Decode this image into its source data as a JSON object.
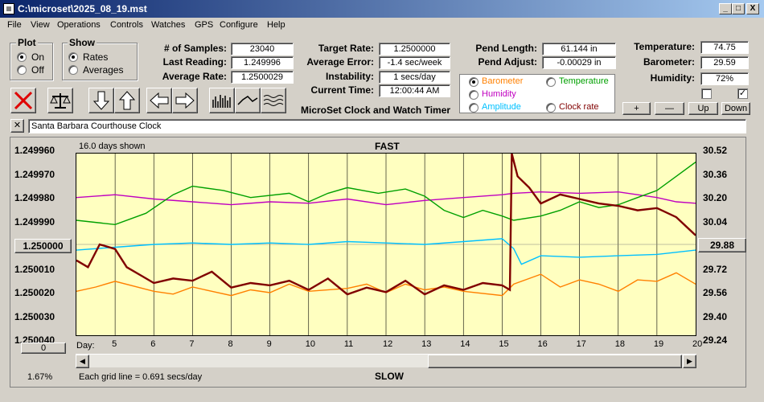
{
  "window": {
    "title": "C:\\microset\\2025_08_19.mst",
    "min": "_",
    "max": "□",
    "close": "X"
  },
  "menu": [
    "File",
    "View",
    "Operations",
    "Controls",
    "Watches",
    "GPS",
    "Configure",
    "Help"
  ],
  "plot_group": {
    "label": "Plot",
    "options": [
      "On",
      "Off"
    ],
    "selected": "On"
  },
  "show_group": {
    "label": "Show",
    "options": [
      "Rates",
      "Averages"
    ],
    "selected": "Rates"
  },
  "stats": {
    "samples_label": "# of Samples:",
    "samples": "23040",
    "last_label": "Last Reading:",
    "last": "1.249996",
    "avg_label": "Average Rate:",
    "avg": "1.2500029",
    "target_label": "Target Rate:",
    "target": "1.2500000",
    "err_label": "Average Error:",
    "err": "-1.4 sec/week",
    "instab_label": "Instability:",
    "instab": "1 secs/day",
    "time_label": "Current Time:",
    "time": "12:00:44 AM",
    "pendlen_label": "Pend Length:",
    "pendlen": "61.144 in",
    "pendadj_label": "Pend Adjust:",
    "pendadj": "-0.00029 in",
    "temp_label": "Temperature:",
    "temp": "74.75",
    "baro_label": "Barometer:",
    "baro": "29.59",
    "hum_label": "Humidity:",
    "hum": "72%"
  },
  "app_caption": "MicroSet Clock and Watch Timer",
  "sensor_options": [
    {
      "label": "Barometer",
      "color": "#ff8000",
      "selected": true
    },
    {
      "label": "Temperature",
      "color": "#00a000",
      "selected": false
    },
    {
      "label": "Humidity",
      "color": "#c000c0",
      "selected": false
    },
    {
      "label": "Amplitude",
      "color": "#00c0ff",
      "selected": false
    },
    {
      "label": "Clock rate",
      "color": "#800000",
      "selected": false
    }
  ],
  "small_buttons": {
    "plus": "+",
    "minus": "—",
    "up": "Up",
    "down": "Down"
  },
  "clock_name": "Santa Barbara Courthouse Clock",
  "chart_data": {
    "type": "line",
    "top_label": "FAST",
    "bottom_label": "SLOW",
    "days_shown": "16.0 days shown",
    "grid_note": "Each grid line = 0.691 secs/day",
    "zoom": "1.67%",
    "x_prefix": "Day:",
    "x_ticks": [
      "5",
      "6",
      "7",
      "8",
      "9",
      "10",
      "11",
      "12",
      "13",
      "14",
      "15",
      "16",
      "17",
      "18",
      "19",
      "20"
    ],
    "y_left_ticks": [
      "1.249960",
      "1.249970",
      "1.249980",
      "1.249990",
      "1.250000",
      "1.250010",
      "1.250020",
      "1.250030",
      "1.250040"
    ],
    "y_right_ticks": [
      "30.52",
      "30.36",
      "30.20",
      "30.04",
      "29.88",
      "29.72",
      "29.56",
      "29.40",
      "29.24"
    ],
    "left_button": "1.250000",
    "right_button": "29.88",
    "zero_button": "0",
    "xlim": [
      4,
      20
    ],
    "ylim_left": [
      1.24996,
      1.25004
    ],
    "ylim_right": [
      29.24,
      30.52
    ],
    "series": [
      {
        "name": "Humidity",
        "color": "#c000c0",
        "x": [
          4,
          5,
          6,
          7,
          8,
          9,
          10,
          11,
          12,
          13,
          14,
          15,
          15.3,
          16,
          17,
          18,
          19,
          19.5,
          20
        ],
        "y": [
          30.21,
          30.23,
          30.2,
          30.18,
          30.16,
          30.18,
          30.17,
          30.2,
          30.16,
          30.19,
          30.21,
          30.23,
          30.24,
          30.25,
          30.24,
          30.25,
          30.21,
          30.18,
          30.17
        ]
      },
      {
        "name": "Temperature",
        "color": "#00a000",
        "x": [
          4,
          5,
          5.8,
          6.5,
          7,
          7.8,
          8.5,
          9.5,
          10,
          10.5,
          11,
          11.8,
          12.5,
          13,
          13.5,
          14,
          14.5,
          15,
          15.3,
          16,
          16.5,
          17,
          17.5,
          18,
          18.5,
          19,
          19.5,
          20
        ],
        "y": [
          30.05,
          30.02,
          30.1,
          30.23,
          30.29,
          30.26,
          30.21,
          30.24,
          30.18,
          30.24,
          30.28,
          30.24,
          30.27,
          30.22,
          30.12,
          30.07,
          30.12,
          30.08,
          30.05,
          30.08,
          30.12,
          30.18,
          30.14,
          30.16,
          30.21,
          30.26,
          30.36,
          30.46
        ]
      },
      {
        "name": "Amplitude",
        "color": "#00c0ff",
        "x": [
          4,
          5,
          6,
          7,
          8,
          9,
          10,
          11,
          12,
          13,
          14,
          15,
          15.3,
          15.5,
          16,
          17,
          18,
          19,
          20
        ],
        "y": [
          29.84,
          29.86,
          29.88,
          29.89,
          29.88,
          29.89,
          29.88,
          29.9,
          29.89,
          29.88,
          29.9,
          29.92,
          29.85,
          29.74,
          29.8,
          29.79,
          29.8,
          29.81,
          29.84
        ]
      },
      {
        "name": "Barometer",
        "color": "#ff8000",
        "x": [
          4,
          4.5,
          5,
          6,
          6.5,
          7,
          7.5,
          8,
          8.5,
          9,
          9.5,
          10,
          11,
          11.5,
          12,
          12.5,
          13,
          13.5,
          14,
          15,
          15.3,
          16,
          16.5,
          17,
          17.5,
          18,
          18.5,
          19,
          19.5,
          20
        ],
        "y": [
          29.55,
          29.58,
          29.62,
          29.55,
          29.53,
          29.58,
          29.55,
          29.52,
          29.56,
          29.54,
          29.6,
          29.55,
          29.57,
          29.6,
          29.54,
          29.6,
          29.56,
          29.58,
          29.55,
          29.52,
          29.6,
          29.67,
          29.58,
          29.63,
          29.6,
          29.55,
          29.63,
          29.62,
          29.68,
          29.6
        ]
      },
      {
        "name": "Clock rate",
        "color": "#800000",
        "x": [
          4,
          4.3,
          4.6,
          5,
          5.3,
          5.7,
          6,
          6.5,
          7,
          7.5,
          8,
          8.5,
          9,
          9.5,
          10,
          10.5,
          11,
          11.5,
          12,
          12.5,
          13,
          13.5,
          14,
          14.5,
          15,
          15.2,
          15.25,
          15.4,
          15.7,
          16,
          16.5,
          17,
          17.5,
          18,
          18.5,
          19,
          19.5,
          20
        ],
        "y": [
          1.250007,
          1.25001,
          1.25,
          1.250002,
          1.25001,
          1.250014,
          1.250017,
          1.250015,
          1.250016,
          1.250012,
          1.250019,
          1.250017,
          1.250018,
          1.250016,
          1.25002,
          1.250015,
          1.250022,
          1.250019,
          1.250021,
          1.250016,
          1.250022,
          1.250018,
          1.25002,
          1.250017,
          1.250018,
          1.25002,
          1.24996,
          1.24997,
          1.249975,
          1.249982,
          1.249978,
          1.24998,
          1.249982,
          1.249983,
          1.249985,
          1.249984,
          1.249988,
          1.249996
        ]
      }
    ]
  }
}
